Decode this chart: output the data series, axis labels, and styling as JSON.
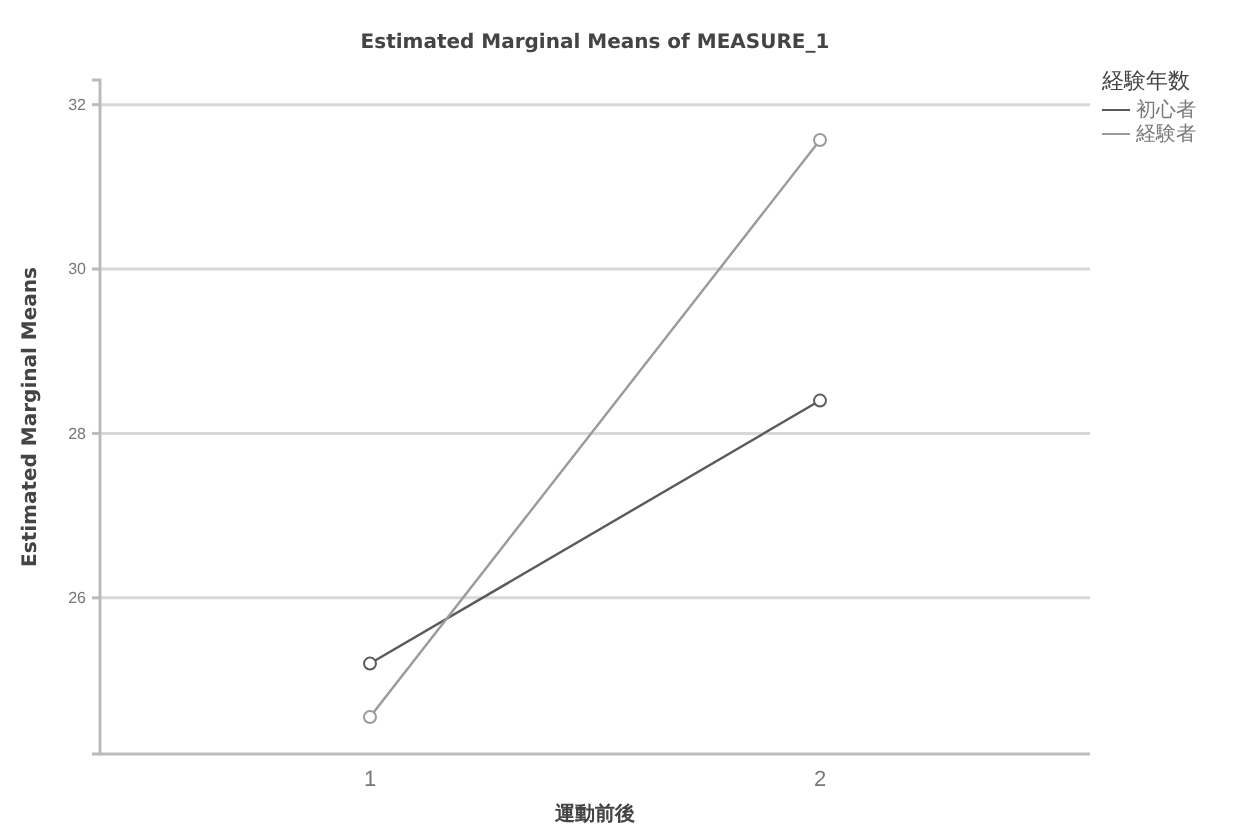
{
  "chart_data": {
    "type": "line",
    "title": "Estimated Marginal Means of MEASURE_1",
    "xlabel": "運動前後",
    "ylabel": "Estimated Marginal Means",
    "legend_title": "経験年数",
    "categories": [
      "1",
      "2"
    ],
    "series": [
      {
        "name": "初心者",
        "color": "#5a5a5a",
        "values": [
          25.2,
          28.4
        ]
      },
      {
        "name": "経験者",
        "color": "#9a9a9a",
        "values": [
          24.55,
          31.57
        ]
      }
    ],
    "ylim": [
      24.1,
      32.3
    ],
    "yticks": [
      26,
      28,
      30,
      32
    ],
    "grid": "y",
    "legend": "top right",
    "marker": "circle",
    "line_style": "solid"
  }
}
